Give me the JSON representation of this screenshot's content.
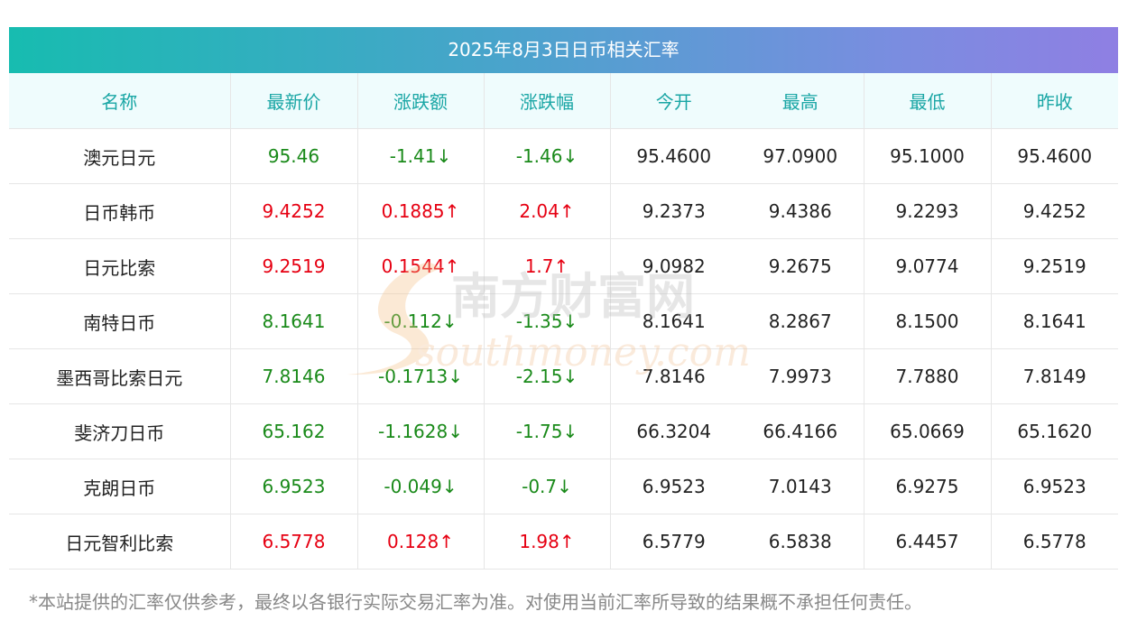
{
  "title": "2025年8月3日日币相关汇率",
  "headers": [
    "名称",
    "最新价",
    "涨跌额",
    "涨跌幅",
    "今开",
    "最高",
    "最低",
    "昨收"
  ],
  "rows": [
    {
      "name": "澳元日元",
      "latest": "95.46",
      "change": "-1.41↓",
      "pct": "-1.46↓",
      "open": "95.4600",
      "high": "97.0900",
      "low": "95.1000",
      "prev": "95.4600",
      "dir": "down"
    },
    {
      "name": "日币韩币",
      "latest": "9.4252",
      "change": "0.1885↑",
      "pct": "2.04↑",
      "open": "9.2373",
      "high": "9.4386",
      "low": "9.2293",
      "prev": "9.4252",
      "dir": "up"
    },
    {
      "name": "日元比索",
      "latest": "9.2519",
      "change": "0.1544↑",
      "pct": "1.7↑",
      "open": "9.0982",
      "high": "9.2675",
      "low": "9.0774",
      "prev": "9.2519",
      "dir": "up"
    },
    {
      "name": "南特日币",
      "latest": "8.1641",
      "change": "-0.112↓",
      "pct": "-1.35↓",
      "open": "8.1641",
      "high": "8.2867",
      "low": "8.1500",
      "prev": "8.1641",
      "dir": "down"
    },
    {
      "name": "墨西哥比索日元",
      "latest": "7.8146",
      "change": "-0.1713↓",
      "pct": "-2.15↓",
      "open": "7.8146",
      "high": "7.9973",
      "low": "7.7880",
      "prev": "7.8149",
      "dir": "down"
    },
    {
      "name": "斐济刀日币",
      "latest": "65.162",
      "change": "-1.1628↓",
      "pct": "-1.75↓",
      "open": "66.3204",
      "high": "66.4166",
      "low": "65.0669",
      "prev": "65.1620",
      "dir": "down"
    },
    {
      "name": "克朗日币",
      "latest": "6.9523",
      "change": "-0.049↓",
      "pct": "-0.7↓",
      "open": "6.9523",
      "high": "7.0143",
      "low": "6.9275",
      "prev": "6.9523",
      "dir": "down"
    },
    {
      "name": "日元智利比索",
      "latest": "6.5778",
      "change": "0.128↑",
      "pct": "1.98↑",
      "open": "6.5779",
      "high": "6.5838",
      "low": "6.4457",
      "prev": "6.5778",
      "dir": "up"
    }
  ],
  "watermark": {
    "cn": "南方财富网",
    "en": "southmoney.com"
  },
  "footnote": "*本站提供的汇率仅供参考，最终以各银行实际交易汇率为准。对使用当前汇率所导致的结果概不承担任何责任。",
  "colors": {
    "up": "#e60012",
    "down": "#1a8a1a",
    "header_text": "#1aa6a5",
    "header_bg": "#effcfd"
  }
}
